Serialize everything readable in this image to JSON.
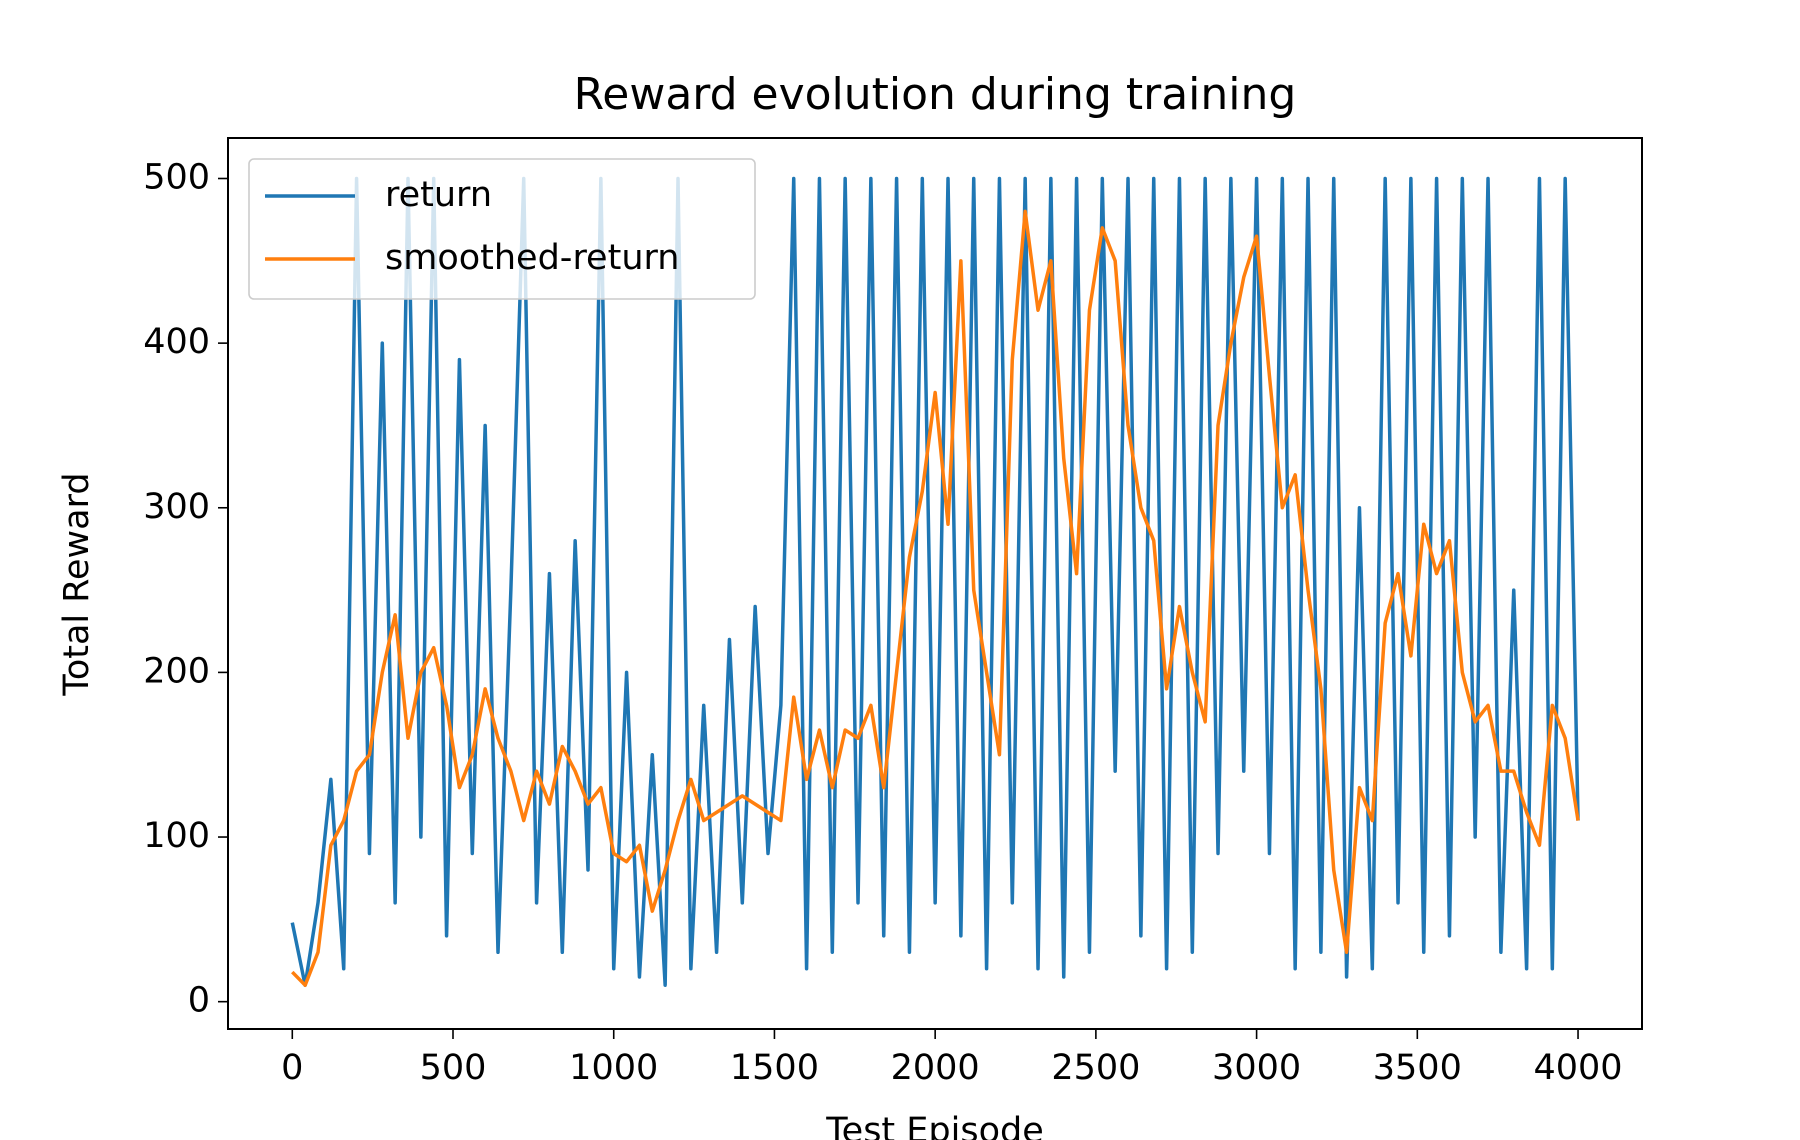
{
  "chart_data": {
    "type": "line",
    "title": "Reward evolution during training",
    "x_label": "Test Episode",
    "y_label": "Total Reward",
    "x": [
      0,
      40,
      80,
      120,
      160,
      200,
      240,
      280,
      320,
      360,
      400,
      440,
      480,
      520,
      560,
      600,
      640,
      680,
      720,
      760,
      800,
      840,
      880,
      920,
      960,
      1000,
      1040,
      1080,
      1120,
      1160,
      1200,
      1240,
      1280,
      1320,
      1360,
      1400,
      1440,
      1480,
      1520,
      1560,
      1600,
      1640,
      1680,
      1720,
      1760,
      1800,
      1840,
      1880,
      1920,
      1960,
      2000,
      2040,
      2080,
      2120,
      2160,
      2200,
      2240,
      2280,
      2320,
      2360,
      2400,
      2440,
      2480,
      2520,
      2560,
      2600,
      2640,
      2680,
      2720,
      2760,
      2800,
      2840,
      2880,
      2920,
      2960,
      3000,
      3040,
      3080,
      3120,
      3160,
      3200,
      3240,
      3280,
      3320,
      3360,
      3400,
      3440,
      3480,
      3520,
      3560,
      3600,
      3640,
      3680,
      3720,
      3760,
      3800,
      3840,
      3880,
      3920,
      3960,
      4000
    ],
    "series": [
      {
        "name": "return",
        "color": "#1f77b4",
        "values": [
          48,
          10,
          60,
          135,
          20,
          500,
          90,
          400,
          60,
          500,
          100,
          500,
          40,
          390,
          90,
          350,
          30,
          250,
          500,
          60,
          260,
          30,
          280,
          80,
          500,
          20,
          200,
          15,
          150,
          10,
          500,
          20,
          180,
          30,
          220,
          60,
          240,
          90,
          180,
          500,
          20,
          500,
          30,
          500,
          60,
          500,
          40,
          500,
          30,
          500,
          60,
          500,
          40,
          500,
          20,
          500,
          60,
          500,
          20,
          500,
          15,
          500,
          30,
          500,
          140,
          500,
          40,
          500,
          20,
          500,
          30,
          500,
          90,
          500,
          140,
          500,
          90,
          500,
          20,
          500,
          30,
          500,
          15,
          300,
          20,
          500,
          60,
          500,
          30,
          500,
          40,
          500,
          100,
          500,
          30,
          250,
          20,
          500,
          20,
          500,
          110
        ]
      },
      {
        "name": "smoothed-return",
        "color": "#ff7f0e",
        "values": [
          18,
          10,
          30,
          95,
          110,
          140,
          150,
          200,
          235,
          160,
          200,
          215,
          180,
          130,
          150,
          190,
          160,
          140,
          110,
          140,
          120,
          155,
          140,
          120,
          130,
          90,
          85,
          95,
          55,
          80,
          110,
          135,
          110,
          115,
          120,
          125,
          120,
          115,
          110,
          185,
          135,
          165,
          130,
          165,
          160,
          180,
          130,
          200,
          270,
          310,
          370,
          290,
          450,
          250,
          200,
          150,
          390,
          480,
          420,
          450,
          330,
          260,
          420,
          470,
          450,
          350,
          300,
          280,
          190,
          240,
          200,
          170,
          350,
          400,
          440,
          465,
          380,
          300,
          320,
          250,
          190,
          80,
          30,
          130,
          110,
          230,
          260,
          210,
          290,
          260,
          280,
          200,
          170,
          180,
          140,
          140,
          115,
          95,
          180,
          160,
          110
        ]
      }
    ],
    "xlim": [
      -200,
      4199
    ],
    "ylim": [
      -16.6,
      524.6
    ],
    "xticks": [
      0,
      500,
      1000,
      1500,
      2000,
      2500,
      3000,
      3500,
      4000
    ],
    "yticks": [
      0,
      100,
      200,
      300,
      400,
      500
    ],
    "legend": "upper left"
  }
}
